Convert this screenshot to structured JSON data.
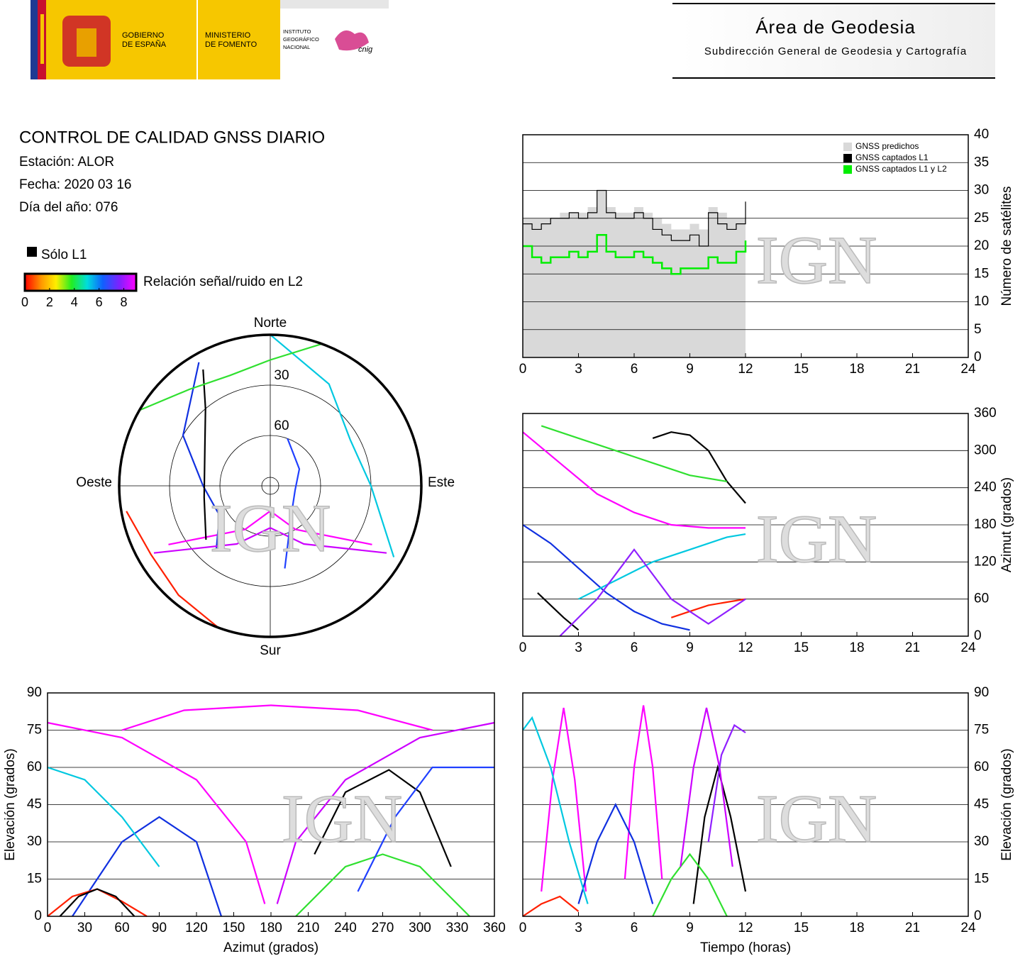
{
  "header": {
    "gobierno": [
      "GOBIERNO",
      "DE ESPAÑA"
    ],
    "ministerio": [
      "MINISTERIO",
      "DE FOMENTO"
    ],
    "instituto": [
      "INSTITUTO",
      "GEOGRÁFICO",
      "NACIONAL"
    ],
    "cnig": "cnig",
    "title": "Área de Geodesia",
    "subtitle": "Subdirección General de Geodesia y Cartografía"
  },
  "report": {
    "title": "CONTROL DE CALIDAD GNSS DIARIO",
    "station": "Estación: ALOR",
    "date": "Fecha: 2020 03 16",
    "doy": "Día del año: 076",
    "legend_l1": "Sólo L1",
    "colorbar_label": "Relación señal/ruido en L2",
    "colorbar_lim": [
      0,
      9
    ],
    "colorbar_ticks": [
      0,
      2,
      4,
      6,
      8
    ]
  },
  "watermark": "IGN",
  "chart_data": [
    {
      "type": "skyplot",
      "north": "Norte",
      "south": "Sur",
      "east": "Este",
      "west": "Oeste",
      "rings": [
        30,
        60
      ],
      "series": [
        {
          "color": "#ff00ff",
          "x": [
            240,
            210,
            180,
            150,
            120
          ],
          "values": [
            20,
            60,
            75,
            60,
            20
          ]
        },
        {
          "color": "#1030e0",
          "x": [
            330,
            300,
            270,
            240,
            220
          ],
          "values": [
            5,
            30,
            50,
            55,
            40
          ]
        },
        {
          "color": "#000000",
          "x": [
            330,
            320,
            300,
            260,
            230
          ],
          "values": [
            10,
            30,
            45,
            50,
            40
          ]
        },
        {
          "color": "#00c8e0",
          "x": [
            0,
            30,
            60,
            90,
            120
          ],
          "values": [
            0,
            20,
            35,
            30,
            5
          ]
        },
        {
          "color": "#30e030",
          "x": [
            300,
            320,
            340,
            0,
            20
          ],
          "values": [
            0,
            15,
            20,
            15,
            0
          ]
        },
        {
          "color": "#cc00ff",
          "x": [
            120,
            150,
            180,
            210,
            240
          ],
          "values": [
            10,
            50,
            65,
            50,
            10
          ]
        },
        {
          "color": "#ff2000",
          "x": [
            200,
            220,
            240,
            260
          ],
          "values": [
            0,
            5,
            8,
            3
          ]
        },
        {
          "color": "#2040ff",
          "x": [
            20,
            60,
            100,
            140,
            170
          ],
          "values": [
            60,
            70,
            75,
            70,
            40
          ]
        }
      ]
    },
    {
      "type": "line",
      "step": true,
      "y_label": "Número de satélites",
      "yaxis_side": "right",
      "grid": true,
      "legend": "top-right",
      "xlim": [
        0,
        24
      ],
      "xticks": [
        0,
        3,
        6,
        9,
        12,
        15,
        18,
        21,
        24
      ],
      "ylim": [
        0,
        40
      ],
      "yticks": [
        0,
        5,
        10,
        15,
        20,
        25,
        30,
        35,
        40
      ],
      "x": [
        0,
        0.5,
        1,
        1.5,
        2,
        2.5,
        3,
        3.5,
        4,
        4.5,
        5,
        5.5,
        6,
        6.5,
        7,
        7.5,
        8,
        8.5,
        9,
        9.5,
        10,
        10.5,
        11,
        11.5,
        12
      ],
      "series": [
        {
          "name": "GNSS predichos",
          "color": "#d9d9d9",
          "area": true,
          "values": [
            25,
            25,
            25,
            25,
            26,
            26,
            26,
            27,
            30,
            27,
            26,
            26,
            27,
            26,
            25,
            24,
            23,
            23,
            24,
            23,
            27,
            26,
            25,
            25,
            24
          ]
        },
        {
          "name": "GNSS captados L1",
          "color": "#000000",
          "values": [
            24,
            23,
            24,
            25,
            25,
            26,
            25,
            26,
            30,
            26,
            25,
            25,
            26,
            25,
            23,
            22,
            21,
            21,
            22,
            20,
            26,
            24,
            23,
            24,
            28
          ]
        },
        {
          "name": "GNSS captados L1 y L2",
          "color": "#00ee00",
          "values": [
            20,
            18,
            17,
            18,
            18,
            19,
            18,
            19,
            22,
            19,
            18,
            18,
            19,
            18,
            17,
            16,
            15,
            16,
            16,
            16,
            18,
            17,
            17,
            19,
            21
          ]
        }
      ]
    },
    {
      "type": "scatter",
      "y_label": "Azimut (grados)",
      "yaxis_side": "right",
      "grid": true,
      "xlim": [
        0,
        24
      ],
      "xticks": [
        0,
        3,
        6,
        9,
        12,
        15,
        18,
        21,
        24
      ],
      "ylim": [
        0,
        360
      ],
      "yticks": [
        0,
        60,
        120,
        180,
        240,
        300,
        360
      ],
      "series": [
        {
          "color": "#ff00ff",
          "x": [
            0,
            2,
            4,
            6,
            8,
            10,
            12
          ],
          "values": [
            330,
            280,
            230,
            200,
            180,
            175,
            175
          ]
        },
        {
          "color": "#1030e0",
          "x": [
            0,
            1.5,
            3,
            4.5,
            6,
            7.5,
            9
          ],
          "values": [
            180,
            150,
            110,
            70,
            40,
            20,
            10
          ]
        },
        {
          "color": "#000000",
          "x": [
            7,
            8,
            9,
            10,
            11,
            12
          ],
          "values": [
            320,
            330,
            325,
            300,
            250,
            215
          ]
        },
        {
          "color": "#00c8e0",
          "x": [
            3,
            5,
            7,
            9,
            11,
            12
          ],
          "values": [
            60,
            90,
            120,
            140,
            160,
            165
          ]
        },
        {
          "color": "#30e030",
          "x": [
            1,
            3,
            5,
            7,
            9,
            11
          ],
          "values": [
            340,
            320,
            300,
            280,
            260,
            250
          ]
        },
        {
          "color": "#000000",
          "x": [
            0.8,
            1.5,
            2.2,
            3
          ],
          "values": [
            70,
            50,
            30,
            10
          ]
        },
        {
          "color": "#ff2000",
          "x": [
            8,
            9,
            10,
            11,
            12
          ],
          "values": [
            30,
            40,
            50,
            55,
            60
          ]
        },
        {
          "color": "#9020ff",
          "x": [
            2,
            4,
            6,
            8,
            10,
            12
          ],
          "values": [
            0,
            60,
            140,
            60,
            20,
            60
          ]
        }
      ]
    },
    {
      "type": "scatter",
      "x_label": "Azimut (grados)",
      "y_label": "Elevación (grados)",
      "yaxis_side": "left",
      "grid": true,
      "xlim": [
        0,
        360
      ],
      "xticks": [
        0,
        30,
        60,
        90,
        120,
        150,
        180,
        210,
        240,
        270,
        300,
        330,
        360
      ],
      "ylim": [
        0,
        90
      ],
      "yticks": [
        0,
        15,
        30,
        45,
        60,
        75,
        90
      ],
      "series": [
        {
          "color": "#ff00ff",
          "x": [
            60,
            110,
            180,
            250,
            310
          ],
          "values": [
            75,
            83,
            85,
            83,
            75
          ]
        },
        {
          "color": "#ff00ff",
          "x": [
            0,
            60,
            120,
            160,
            175
          ],
          "values": [
            78,
            72,
            55,
            30,
            5
          ]
        },
        {
          "color": "#cc00ff",
          "x": [
            185,
            200,
            240,
            300,
            360
          ],
          "values": [
            5,
            30,
            55,
            72,
            78
          ]
        },
        {
          "color": "#000000",
          "x": [
            215,
            240,
            275,
            300,
            325
          ],
          "values": [
            25,
            50,
            59,
            50,
            20
          ]
        },
        {
          "color": "#1030e0",
          "x": [
            20,
            60,
            90,
            120,
            140
          ],
          "values": [
            0,
            30,
            40,
            30,
            0
          ]
        },
        {
          "color": "#00c8e0",
          "x": [
            0,
            30,
            60,
            90
          ],
          "values": [
            60,
            55,
            40,
            20
          ]
        },
        {
          "color": "#30e030",
          "x": [
            200,
            240,
            270,
            300,
            340
          ],
          "values": [
            0,
            20,
            25,
            20,
            0
          ]
        },
        {
          "color": "#ff2000",
          "x": [
            0,
            20,
            40,
            60,
            80
          ],
          "values": [
            0,
            8,
            11,
            6,
            0
          ]
        },
        {
          "color": "#2040ff",
          "x": [
            250,
            280,
            310,
            340,
            360
          ],
          "values": [
            10,
            40,
            60,
            60,
            60
          ]
        },
        {
          "color": "#000000",
          "x": [
            10,
            25,
            40,
            55,
            70
          ],
          "values": [
            0,
            8,
            11,
            8,
            0
          ]
        }
      ]
    },
    {
      "type": "scatter",
      "x_label": "Tiempo (horas)",
      "y_label": "Elevación (grados)",
      "yaxis_side": "right",
      "grid": true,
      "xlim": [
        0,
        24
      ],
      "xticks": [
        0,
        3,
        6,
        9,
        12,
        15,
        18,
        21,
        24
      ],
      "ylim": [
        0,
        90
      ],
      "yticks": [
        0,
        15,
        30,
        45,
        60,
        75,
        90
      ],
      "series": [
        {
          "color": "#ff00ff",
          "x": [
            1,
            1.6,
            2.2,
            2.8,
            3.4
          ],
          "values": [
            10,
            55,
            84,
            55,
            10
          ]
        },
        {
          "color": "#ff00ff",
          "x": [
            5.5,
            6,
            6.5,
            7,
            7.5
          ],
          "values": [
            15,
            60,
            85,
            60,
            15
          ]
        },
        {
          "color": "#1030e0",
          "x": [
            3,
            4,
            5,
            6,
            7
          ],
          "values": [
            5,
            30,
            45,
            30,
            5
          ]
        },
        {
          "color": "#00c8e0",
          "x": [
            0,
            0.5,
            1.5,
            2.5,
            3.5
          ],
          "values": [
            75,
            80,
            60,
            30,
            5
          ]
        },
        {
          "color": "#000000",
          "x": [
            9.2,
            9.8,
            10.5,
            11.2,
            12
          ],
          "values": [
            5,
            40,
            60,
            40,
            10
          ]
        },
        {
          "color": "#30e030",
          "x": [
            7,
            8,
            9,
            10,
            11
          ],
          "values": [
            0,
            15,
            25,
            15,
            0
          ]
        },
        {
          "color": "#cc00ff",
          "x": [
            8.5,
            9.2,
            9.9,
            10.6,
            11.3
          ],
          "values": [
            20,
            60,
            84,
            60,
            20
          ]
        },
        {
          "color": "#ff2000",
          "x": [
            0,
            1,
            2,
            3
          ],
          "values": [
            0,
            5,
            8,
            2
          ]
        },
        {
          "color": "#9020ff",
          "x": [
            10,
            10.7,
            11.4,
            12
          ],
          "values": [
            30,
            65,
            77,
            74
          ]
        }
      ]
    }
  ]
}
